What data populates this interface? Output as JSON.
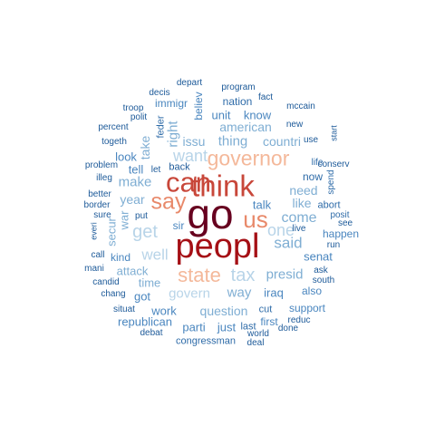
{
  "palette": {
    "darkest": "#67001F",
    "dark_red": "#A50F15",
    "red": "#C8473A",
    "salmon": "#E8896A",
    "peach": "#F4B89A",
    "light_blue": "#B8D4E8",
    "mid_blue": "#7FAED3",
    "blue": "#4A86BF",
    "dark_blue": "#2E6BA8",
    "navy": "#1D5A99"
  },
  "words": [
    {
      "text": "go",
      "color": "darkest"
    },
    {
      "text": "peopl",
      "color": "dark_red"
    },
    {
      "text": "think",
      "color": "red"
    },
    {
      "text": "can",
      "color": "red"
    },
    {
      "text": "us",
      "color": "salmon"
    },
    {
      "text": "say",
      "color": "salmon"
    },
    {
      "text": "governor",
      "color": "peach"
    },
    {
      "text": "state",
      "color": "peach"
    },
    {
      "text": "tax",
      "color": "light_blue"
    },
    {
      "text": "get",
      "color": "light_blue"
    },
    {
      "text": "want",
      "color": "light_blue"
    },
    {
      "text": "one",
      "color": "light_blue"
    },
    {
      "text": "said",
      "color": "mid_blue"
    },
    {
      "text": "come",
      "color": "mid_blue"
    },
    {
      "text": "well",
      "color": "light_blue"
    },
    {
      "text": "govern",
      "color": "light_blue"
    },
    {
      "text": "thing",
      "color": "mid_blue"
    },
    {
      "text": "make",
      "color": "mid_blue"
    },
    {
      "text": "presid",
      "color": "mid_blue"
    },
    {
      "text": "way",
      "color": "mid_blue"
    },
    {
      "text": "countri",
      "color": "mid_blue"
    },
    {
      "text": "american",
      "color": "mid_blue"
    },
    {
      "text": "need",
      "color": "mid_blue"
    },
    {
      "text": "question",
      "color": "mid_blue"
    },
    {
      "text": "issu",
      "color": "mid_blue"
    },
    {
      "text": "like",
      "color": "mid_blue"
    },
    {
      "text": "year",
      "color": "mid_blue"
    },
    {
      "text": "take",
      "color": "mid_blue"
    },
    {
      "text": "right",
      "color": "mid_blue"
    },
    {
      "text": "attack",
      "color": "mid_blue"
    },
    {
      "text": "time",
      "color": "mid_blue"
    },
    {
      "text": "war",
      "color": "mid_blue"
    },
    {
      "text": "secur",
      "color": "mid_blue"
    },
    {
      "text": "unit",
      "color": "blue"
    },
    {
      "text": "know",
      "color": "blue"
    },
    {
      "text": "believ",
      "color": "blue"
    },
    {
      "text": "immigr",
      "color": "blue"
    },
    {
      "text": "talk",
      "color": "blue"
    },
    {
      "text": "tell",
      "color": "blue"
    },
    {
      "text": "look",
      "color": "blue"
    },
    {
      "text": "sir",
      "color": "blue"
    },
    {
      "text": "iraq",
      "color": "blue"
    },
    {
      "text": "got",
      "color": "blue"
    },
    {
      "text": "republican",
      "color": "blue"
    },
    {
      "text": "parti",
      "color": "blue"
    },
    {
      "text": "just",
      "color": "blue"
    },
    {
      "text": "work",
      "color": "blue"
    },
    {
      "text": "also",
      "color": "blue"
    },
    {
      "text": "senat",
      "color": "blue"
    },
    {
      "text": "happen",
      "color": "blue"
    },
    {
      "text": "support",
      "color": "blue"
    },
    {
      "text": "first",
      "color": "blue"
    },
    {
      "text": "kind",
      "color": "blue"
    },
    {
      "text": "now",
      "color": "dark_blue"
    },
    {
      "text": "nation",
      "color": "dark_blue"
    },
    {
      "text": "feder",
      "color": "dark_blue"
    },
    {
      "text": "cut",
      "color": "dark_blue"
    },
    {
      "text": "last",
      "color": "dark_blue"
    },
    {
      "text": "congressman",
      "color": "dark_blue"
    },
    {
      "text": "abort",
      "color": "dark_blue"
    },
    {
      "text": "posit",
      "color": "dark_blue"
    },
    {
      "text": "spend",
      "color": "dark_blue"
    },
    {
      "text": "life",
      "color": "dark_blue"
    },
    {
      "text": "back",
      "color": "navy"
    },
    {
      "text": "let",
      "color": "navy"
    },
    {
      "text": "put",
      "color": "navy"
    },
    {
      "text": "polit",
      "color": "navy"
    },
    {
      "text": "troop",
      "color": "navy"
    },
    {
      "text": "decis",
      "color": "navy"
    },
    {
      "text": "depart",
      "color": "navy"
    },
    {
      "text": "program",
      "color": "navy"
    },
    {
      "text": "fact",
      "color": "navy"
    },
    {
      "text": "mccain",
      "color": "navy"
    },
    {
      "text": "new",
      "color": "navy"
    },
    {
      "text": "use",
      "color": "navy"
    },
    {
      "text": "start",
      "color": "navy"
    },
    {
      "text": "conserv",
      "color": "navy"
    },
    {
      "text": "percent",
      "color": "navy"
    },
    {
      "text": "togeth",
      "color": "navy"
    },
    {
      "text": "problem",
      "color": "navy"
    },
    {
      "text": "illeg",
      "color": "navy"
    },
    {
      "text": "better",
      "color": "navy"
    },
    {
      "text": "border",
      "color": "navy"
    },
    {
      "text": "sure",
      "color": "navy"
    },
    {
      "text": "everi",
      "color": "navy"
    },
    {
      "text": "call",
      "color": "navy"
    },
    {
      "text": "mani",
      "color": "navy"
    },
    {
      "text": "candid",
      "color": "navy"
    },
    {
      "text": "chang",
      "color": "navy"
    },
    {
      "text": "situat",
      "color": "navy"
    },
    {
      "text": "debat",
      "color": "navy"
    },
    {
      "text": "world",
      "color": "navy"
    },
    {
      "text": "deal",
      "color": "navy"
    },
    {
      "text": "done",
      "color": "navy"
    },
    {
      "text": "reduc",
      "color": "navy"
    },
    {
      "text": "south",
      "color": "navy"
    },
    {
      "text": "ask",
      "color": "navy"
    },
    {
      "text": "run",
      "color": "navy"
    },
    {
      "text": "see",
      "color": "navy"
    },
    {
      "text": "live",
      "color": "navy"
    }
  ]
}
